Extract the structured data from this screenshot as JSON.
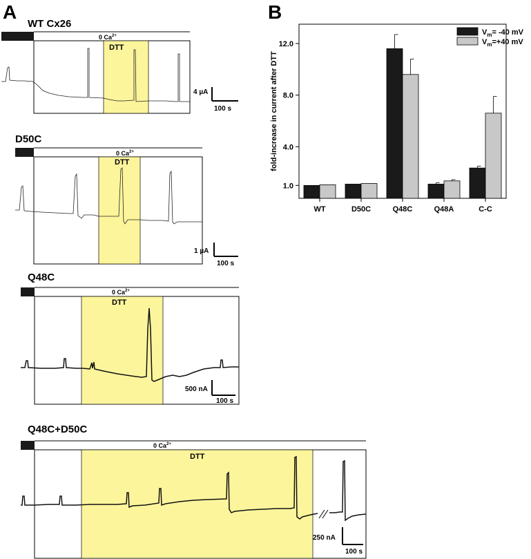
{
  "panel_a": {
    "letter": "A",
    "sub": [
      {
        "title": "WT Cx26",
        "ca_label": "0 Ca",
        "ca_sup": "2+",
        "dtt_label": "DTT",
        "scale_y": "4 µA",
        "scale_x": "100 s"
      },
      {
        "title": "D50C",
        "ca_label": "0 Ca",
        "ca_sup": "2+",
        "dtt_label": "DTT",
        "scale_y": "1 µA",
        "scale_x": "100 s"
      },
      {
        "title": "Q48C",
        "ca_label": "0 Ca",
        "ca_sup": "2+",
        "dtt_label": "DTT",
        "scale_y": "500 nA",
        "scale_x": "100 s"
      },
      {
        "title": "Q48C+D50C",
        "ca_label": "0 Ca",
        "ca_sup": "2+",
        "dtt_label": "DTT",
        "scale_y": "250 nA",
        "scale_x": "100 s"
      }
    ]
  },
  "panel_b": {
    "letter": "B"
  },
  "chart_data": {
    "type": "bar",
    "categories": [
      "WT",
      "D50C",
      "Q48C",
      "Q48A",
      "C-C"
    ],
    "ylabel": "fold-increase in current after DTT",
    "ylim": [
      0.0,
      13.5
    ],
    "yticks": [
      "1.0",
      "4.0",
      "8.0",
      "12.0"
    ],
    "legend_position": "top-right",
    "series": [
      {
        "name_prefix": "V",
        "name_sub": "m",
        "name_suffix": "= -40 mV",
        "color": "#1a1a1a",
        "values": [
          1.0,
          1.1,
          11.6,
          1.1,
          2.35
        ],
        "errors": [
          0.0,
          0.0,
          1.1,
          0.1,
          0.15
        ]
      },
      {
        "name_prefix": "V",
        "name_sub": "m",
        "name_suffix": "=+40 mV",
        "color": "#c8c8c8",
        "values": [
          1.05,
          1.15,
          9.6,
          1.35,
          6.6
        ],
        "errors": [
          0.0,
          0.0,
          1.2,
          0.1,
          1.3
        ]
      }
    ]
  }
}
